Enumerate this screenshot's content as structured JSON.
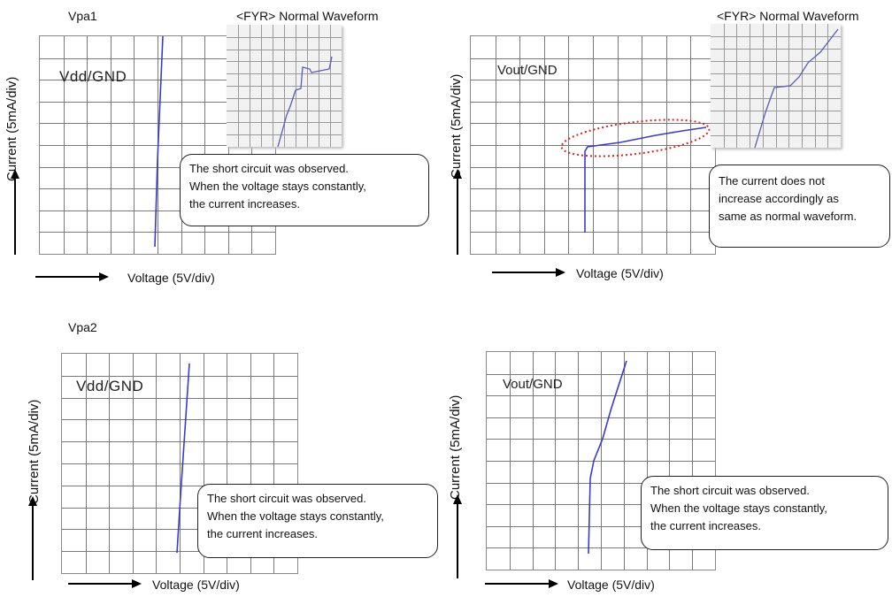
{
  "sections": {
    "vpa1": "Vpa1",
    "vpa2": "Vpa2"
  },
  "normal_waveform_title": "<FYR> Normal Waveform",
  "axis": {
    "current": "Current (5mA/div)",
    "voltage": "Voltage (5V/div)"
  },
  "plots": {
    "p1": {
      "label": "Vdd/GND"
    },
    "p2": {
      "label": "Vout/GND"
    },
    "p3": {
      "label": "Vdd/GND"
    },
    "p4": {
      "label": "Vout/GND"
    }
  },
  "callouts": {
    "p1": [
      "The short circuit was observed.",
      "When the voltage stays constantly,",
      "the current increases."
    ],
    "p2": [
      "The current does not",
      "increase accordingly as",
      "same as normal waveform."
    ],
    "p3": [
      "The short circuit was observed.",
      "When the voltage stays constantly,",
      "the current increases."
    ],
    "p4": [
      "The short circuit was observed.",
      "When the voltage stays constantly,",
      "the current increases."
    ]
  },
  "colors": {
    "trace": "#3a3ad0",
    "highlight": "#e0201c",
    "grid": "#7a7a7a"
  }
}
